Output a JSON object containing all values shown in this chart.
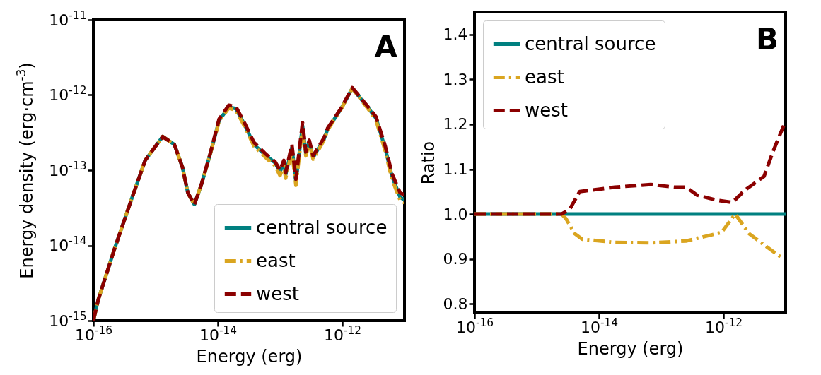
{
  "chart_data": [
    {
      "type": "line",
      "xlabel": "Energy (erg)",
      "ylabel": "Energy density (erg·cm$^{-3}$)",
      "annotations": [
        "A"
      ],
      "log": "xy",
      "legend": "bottom right",
      "grid": false,
      "xlim": [
        1e-16,
        1e-11
      ],
      "xticks": [
        {
          "value": 1e-16,
          "label": "10$^{-16}$"
        },
        {
          "value": 1e-14,
          "label": "10$^{-14}$"
        },
        {
          "value": 1e-12,
          "label": "10$^{-12}$"
        }
      ],
      "ylim": [
        1e-15,
        1e-11
      ],
      "yticks": [
        {
          "value": 1e-15,
          "label": "10$^{-15}$"
        },
        {
          "value": 1e-14,
          "label": "10$^{-14}$"
        },
        {
          "value": 1e-13,
          "label": "10$^{-13}$"
        },
        {
          "value": 1e-12,
          "label": "10$^{-12}$"
        },
        {
          "value": 1e-11,
          "label": "10$^{-11}$"
        }
      ],
      "x": [
        1e-16,
        1.2e-16,
        2.2e-16,
        4.1e-16,
        6.8e-16,
        1.3e-15,
        2e-15,
        2.7e-15,
        3.3e-15,
        4.2e-15,
        5.4e-15,
        7.6e-15,
        1.05e-14,
        1.5e-14,
        1.95e-14,
        2.75e-14,
        3.8e-14,
        6e-14,
        8.3e-14,
        1e-13,
        1.15e-13,
        1.23e-13,
        1.55e-13,
        1.8e-13,
        2.3e-13,
        2.6e-13,
        2.95e-13,
        3.4e-13,
        5.1e-13,
        5.8e-13,
        9.5e-13,
        1.45e-12,
        2.7e-12,
        3.5e-12,
        4.9e-12,
        6.3e-12,
        8.5e-12,
        1e-11
      ],
      "series": [
        {
          "name": "central source",
          "color": "#008080",
          "line_style": "solid",
          "values": [
            1e-15,
            1.9e-15,
            9.1e-15,
            4.1e-14,
            1.35e-13,
            2.8e-13,
            2.2e-13,
            1.1e-13,
            5e-14,
            3.5e-14,
            6.3e-14,
            1.66e-13,
            4.6e-13,
            6.9e-13,
            6.6e-13,
            3.9e-13,
            2.2e-13,
            1.55e-13,
            1.26e-13,
            9.5e-14,
            1.26e-13,
            8.7e-14,
            2e-13,
            7.1e-14,
            3.9e-13,
            1.66e-13,
            2.4e-13,
            1.48e-13,
            2.6e-13,
            3.5e-13,
            6.5e-13,
            1.23e-12,
            6.5e-13,
            4.9e-13,
            1.95e-13,
            8.3e-14,
            4.4e-14,
            4e-14
          ]
        },
        {
          "name": "east",
          "color": "#daa520",
          "line_style": "dashdot",
          "values": [
            1e-15,
            1.9e-15,
            9.1e-15,
            4.1e-14,
            1.35e-13,
            2.8e-13,
            2.2e-13,
            1.1e-13,
            5e-14,
            3.5e-14,
            6.3e-14,
            1.66e-13,
            4.5e-13,
            6.7e-13,
            6.3e-13,
            3.7e-13,
            2.1e-13,
            1.45e-13,
            1.15e-13,
            8.5e-14,
            1.15e-13,
            7.8e-14,
            1.8e-13,
            6.3e-14,
            3.6e-13,
            1.55e-13,
            2.3e-13,
            1.4e-13,
            2.5e-13,
            3.4e-13,
            6.4e-13,
            1.23e-12,
            6.3e-13,
            4.6e-13,
            1.8e-13,
            7.6e-14,
            4e-14,
            3.7e-14
          ]
        },
        {
          "name": "west",
          "color": "#8b0000",
          "line_style": "dashed",
          "values": [
            1e-15,
            1.9e-15,
            9.1e-15,
            4.1e-14,
            1.35e-13,
            2.8e-13,
            2.2e-13,
            1.1e-13,
            5e-14,
            3.5e-14,
            6.3e-14,
            1.7e-13,
            4.8e-13,
            7.3e-13,
            7e-13,
            4.1e-13,
            2.35e-13,
            1.62e-13,
            1.3e-13,
            1e-13,
            1.35e-13,
            9.2e-14,
            2.2e-13,
            7.6e-14,
            4.3e-13,
            1.75e-13,
            2.5e-13,
            1.55e-13,
            2.7e-13,
            3.6e-13,
            6.6e-13,
            1.25e-12,
            6.7e-13,
            5.1e-13,
            2.1e-13,
            9e-14,
            5e-14,
            4.7e-14
          ]
        }
      ]
    },
    {
      "type": "line",
      "xlabel": "Energy (erg)",
      "ylabel": "Ratio",
      "annotations": [
        "B"
      ],
      "log": "x",
      "legend": "top left",
      "grid": false,
      "xlim": [
        1e-16,
        1e-11
      ],
      "xticks": [
        {
          "value": 1e-16,
          "label": "10$^{-16}$"
        },
        {
          "value": 1e-14,
          "label": "10$^{-14}$"
        },
        {
          "value": 1e-12,
          "label": "10$^{-12}$"
        }
      ],
      "ylim": [
        0.78,
        1.45
      ],
      "yticks": [
        0.8,
        0.9,
        {
          "value": 1,
          "label": "1.0"
        },
        1.1,
        1.2,
        1.3,
        1.4
      ],
      "series": [
        {
          "name": "central source",
          "color": "#008080",
          "line_style": "solid",
          "x": [
            1e-16,
            1e-11
          ],
          "values": [
            1.0,
            1.0
          ]
        },
        {
          "name": "east",
          "color": "#daa520",
          "line_style": "dashdot",
          "x": [
            1e-16,
            2.5e-15,
            2.95e-15,
            4.1e-15,
            5.4e-15,
            1.8e-14,
            6.8e-14,
            2.5e-13,
            9.3e-13,
            1.55e-12,
            2.6e-12,
            5.2e-12,
            9.3e-12
          ],
          "values": [
            1.0,
            1.0,
            0.99,
            0.956,
            0.944,
            0.937,
            0.936,
            0.94,
            0.959,
            1.0,
            0.956,
            0.925,
            0.9
          ]
        },
        {
          "name": "west",
          "color": "#8b0000",
          "line_style": "dashed",
          "x": [
            1e-16,
            2.5e-15,
            3.4e-15,
            4.9e-15,
            1.8e-14,
            6.8e-14,
            1.6e-13,
            2.5e-13,
            3.8e-13,
            7.8e-13,
            1.4e-12,
            2.2e-12,
            4.5e-12,
            6.3e-12,
            9.3e-12
          ],
          "values": [
            1.0,
            1.0,
            1.011,
            1.05,
            1.06,
            1.066,
            1.06,
            1.06,
            1.042,
            1.031,
            1.026,
            1.053,
            1.084,
            1.14,
            1.197
          ]
        }
      ]
    }
  ]
}
